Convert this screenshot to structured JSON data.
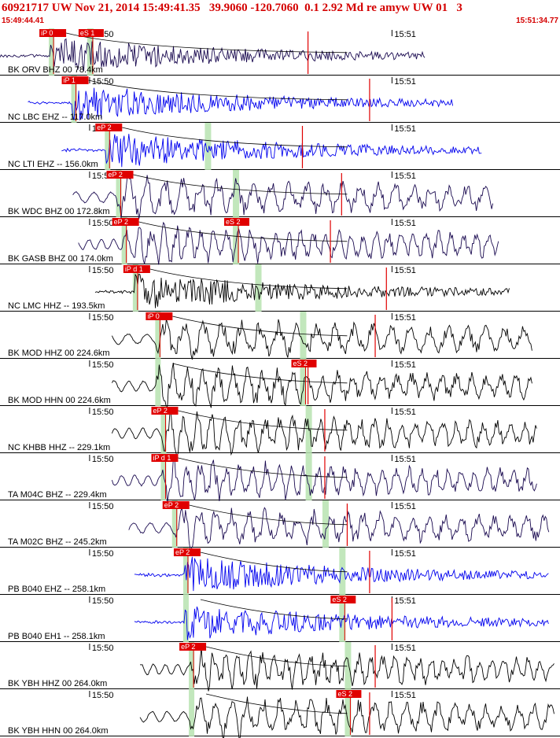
{
  "header": {
    "title": "60921717 UW Nov 21, 2014 15:49:41.35   39.9060 -120.7060  0.1 2.92 Md re amyw UW 01   3",
    "time_start": "15:49:44.41",
    "time_end": "15:51:34.77"
  },
  "tick_labels": {
    "minute_a": "15:50",
    "minute_b": "15:51"
  },
  "colors": {
    "title": "#d40000",
    "pick": "#e00000",
    "window": "#b7e3b0",
    "trace_blue": "#0000ee",
    "trace_navy": "#1a0a50",
    "trace_black": "#000000"
  },
  "traces": [
    {
      "label": "BK ORV BHZ 00 78.4km",
      "color": "trace_navy",
      "p_pick": "iP 0",
      "s_pick": "eS 1",
      "p_time": 0.09,
      "s_time": 0.16,
      "amp_time": 0.55,
      "start": 0.0,
      "end": 0.76,
      "style": "burst"
    },
    {
      "label": "NC LBC EHZ -- 117.0km",
      "color": "trace_blue",
      "p_pick": "iP 1",
      "s_pick": "",
      "p_time": 0.13,
      "s_time": 0.0,
      "amp_time": 0.66,
      "start": 0.05,
      "end": 0.81,
      "style": "burst"
    },
    {
      "label": "NC LTI EHZ -- 156.0km",
      "color": "trace_blue",
      "p_pick": "eP 2",
      "s_pick": "",
      "p_time": 0.19,
      "s_time": 0.37,
      "amp_time": 0.54,
      "start": 0.11,
      "end": 0.86,
      "style": "burst"
    },
    {
      "label": "BK WDC BHZ 00 172.8km",
      "color": "trace_navy",
      "p_pick": "eP 2",
      "s_pick": "",
      "p_time": 0.21,
      "s_time": 0.42,
      "amp_time": 0.61,
      "start": 0.13,
      "end": 0.88,
      "style": "wave"
    },
    {
      "label": "BK GASB BHZ 00 174.0km",
      "color": "trace_navy",
      "p_pick": "eP 2",
      "s_pick": "eS 2",
      "p_time": 0.22,
      "s_time": 0.42,
      "amp_time": 0.59,
      "start": 0.14,
      "end": 0.89,
      "style": "wave"
    },
    {
      "label": "NC LMC HHZ -- 193.5km",
      "color": "trace_black",
      "p_pick": "iP d 1",
      "s_pick": "",
      "p_time": 0.24,
      "s_time": 0.46,
      "amp_time": 0.69,
      "start": 0.17,
      "end": 0.91,
      "style": "burst"
    },
    {
      "label": "BK MOD HHZ 00 224.6km",
      "color": "trace_black",
      "p_pick": "iP 0",
      "s_pick": "",
      "p_time": 0.28,
      "s_time": 0.54,
      "amp_time": 0.67,
      "start": 0.2,
      "end": 0.95,
      "style": "wave"
    },
    {
      "label": "BK MOD HHN 00 224.6km",
      "color": "trace_black",
      "p_pick": "",
      "s_pick": "eS 2",
      "p_time": 0.28,
      "s_time": 0.54,
      "amp_time": 0.55,
      "start": 0.2,
      "end": 0.95,
      "style": "wave"
    },
    {
      "label": "NC KHBB HHZ -- 229.1km",
      "color": "trace_black",
      "p_pick": "eP 2",
      "s_pick": "",
      "p_time": 0.29,
      "s_time": 0.55,
      "amp_time": 0.58,
      "start": 0.2,
      "end": 0.96,
      "style": "wave"
    },
    {
      "label": "TA M04C BHZ -- 229.4km",
      "color": "trace_navy",
      "p_pick": "iP d 1",
      "s_pick": "",
      "p_time": 0.29,
      "s_time": 0.55,
      "amp_time": 0.58,
      "start": 0.2,
      "end": 0.96,
      "style": "wave"
    },
    {
      "label": "TA M02C BHZ -- 245.2km",
      "color": "trace_navy",
      "p_pick": "eP 2",
      "s_pick": "",
      "p_time": 0.31,
      "s_time": 0.58,
      "amp_time": 0.62,
      "start": 0.23,
      "end": 0.98,
      "style": "wave"
    },
    {
      "label": "PB B040 EHZ -- 258.1km",
      "color": "trace_blue",
      "p_pick": "eP 2",
      "s_pick": "",
      "p_time": 0.33,
      "s_time": 0.61,
      "amp_time": 0.66,
      "start": 0.24,
      "end": 0.98,
      "style": "burst"
    },
    {
      "label": "PB B040 EH1 -- 258.1km",
      "color": "trace_blue",
      "p_pick": "",
      "s_pick": "eS 2",
      "p_time": 0.33,
      "s_time": 0.61,
      "amp_time": 0.7,
      "start": 0.24,
      "end": 0.98,
      "style": "burst"
    },
    {
      "label": "BK YBH HHZ 00 264.0km",
      "color": "trace_black",
      "p_pick": "eP 2",
      "s_pick": "",
      "p_time": 0.34,
      "s_time": 0.62,
      "amp_time": 0.67,
      "start": 0.25,
      "end": 0.99,
      "style": "wave"
    },
    {
      "label": "BK YBH HHN 00 264.0km",
      "color": "trace_black",
      "p_pick": "",
      "s_pick": "eS 2",
      "p_time": 0.34,
      "s_time": 0.62,
      "amp_time": 0.66,
      "start": 0.25,
      "end": 0.99,
      "style": "wave"
    }
  ]
}
